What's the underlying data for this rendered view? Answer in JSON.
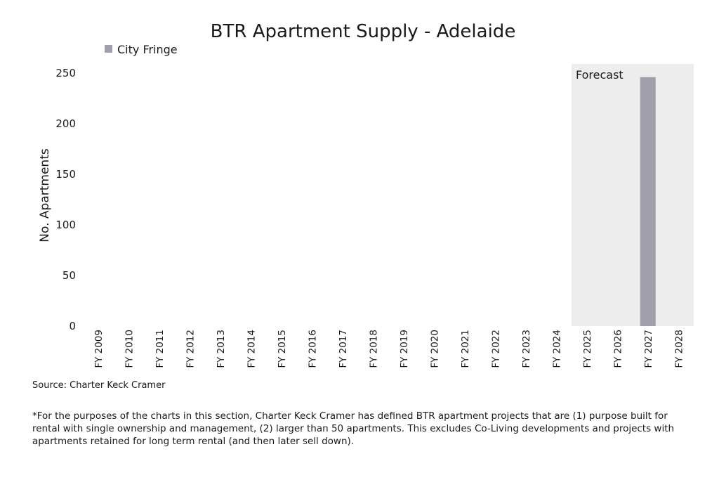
{
  "chart_data": {
    "type": "bar",
    "title": "BTR Apartment Supply - Adelaide",
    "ylabel": "No. Apartments",
    "xlabel": "",
    "ylim": [
      0,
      250
    ],
    "yticks": [
      0,
      50,
      100,
      150,
      200,
      250
    ],
    "categories": [
      "FY 2009",
      "FY 2010",
      "FY 2011",
      "FY 2012",
      "FY 2013",
      "FY 2014",
      "FY 2015",
      "FY 2016",
      "FY 2017",
      "FY 2018",
      "FY 2019",
      "FY 2020",
      "FY 2021",
      "FY 2022",
      "FY 2023",
      "FY 2024",
      "FY 2025",
      "FY 2026",
      "FY 2027",
      "FY 2028"
    ],
    "series": [
      {
        "name": "City Fringe",
        "color": "#a09fab",
        "values": [
          0,
          0,
          0,
          0,
          0,
          0,
          0,
          0,
          0,
          0,
          0,
          0,
          0,
          0,
          0,
          0,
          0,
          0,
          246,
          0
        ]
      }
    ],
    "legend": {
      "position": "top-left"
    },
    "grid": false,
    "forecast": {
      "label": "Forecast",
      "from": "FY 2025",
      "to": "FY 2028",
      "color": "#ededed"
    }
  },
  "source": "Source: Charter Keck Cramer",
  "footnote": "*For the purposes of the charts in this section, Charter Keck Cramer has defined BTR apartment projects that are (1) purpose built for rental with single ownership and management, (2) larger than 50 apartments. This excludes Co-Living developments and projects with apartments retained for long term rental (and then later sell down)."
}
